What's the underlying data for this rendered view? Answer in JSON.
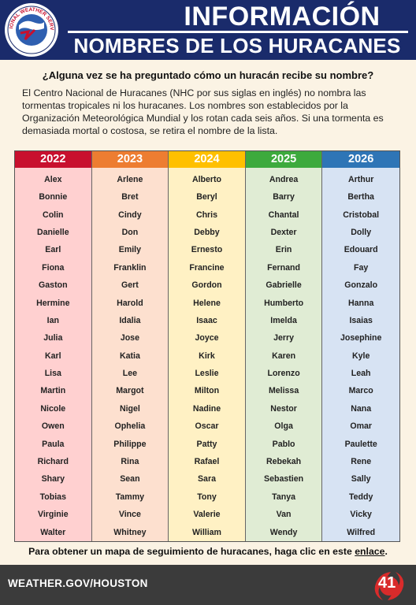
{
  "header": {
    "logo_text": "NATIONAL WEATHER SERVICE",
    "title": "INFORMACIÓN",
    "subtitle": "NOMBRES DE LOS HURACANES"
  },
  "question": "¿Alguna vez se ha preguntado cómo un huracán recibe su nombre?",
  "intro": "El Centro Nacional de Huracanes (NHC por sus siglas en inglés) no nombra las tormentas tropicales ni los huracanes. Los nombres son establecidos por la Organización Meteorológica Mundial y los rotan cada seis años. Si una tormenta es demasiada mortal o costosa, se retira el nombre de la lista.",
  "columns": [
    {
      "year": "2022",
      "header_color": "#c8102e",
      "body_color": "#ffd0d0",
      "names": [
        "Alex",
        "Bonnie",
        "Colin",
        "Danielle",
        "Earl",
        "Fiona",
        "Gaston",
        "Hermine",
        "Ian",
        "Julia",
        "Karl",
        "Lisa",
        "Martin",
        "Nicole",
        "Owen",
        "Paula",
        "Richard",
        "Shary",
        "Tobias",
        "Virginie",
        "Walter"
      ]
    },
    {
      "year": "2023",
      "header_color": "#ed7d31",
      "body_color": "#fde0cf",
      "names": [
        "Arlene",
        "Bret",
        "Cindy",
        "Don",
        "Emily",
        "Franklin",
        "Gert",
        "Harold",
        "Idalia",
        "Jose",
        "Katia",
        "Lee",
        "Margot",
        "Nigel",
        "Ophelia",
        "Philippe",
        "Rina",
        "Sean",
        "Tammy",
        "Vince",
        "Whitney"
      ]
    },
    {
      "year": "2024",
      "header_color": "#ffc000",
      "body_color": "#fff1c4",
      "names": [
        "Alberto",
        "Beryl",
        "Chris",
        "Debby",
        "Ernesto",
        "Francine",
        "Gordon",
        "Helene",
        "Isaac",
        "Joyce",
        "Kirk",
        "Leslie",
        "Milton",
        "Nadine",
        "Oscar",
        "Patty",
        "Rafael",
        "Sara",
        "Tony",
        "Valerie",
        "William"
      ]
    },
    {
      "year": "2025",
      "header_color": "#3daa3d",
      "body_color": "#e0ecd4",
      "names": [
        "Andrea",
        "Barry",
        "Chantal",
        "Dexter",
        "Erin",
        "Fernand",
        "Gabrielle",
        "Humberto",
        "Imelda",
        "Jerry",
        "Karen",
        "Lorenzo",
        "Melissa",
        "Nestor",
        "Olga",
        "Pablo",
        "Rebekah",
        "Sebastien",
        "Tanya",
        "Van",
        "Wendy"
      ]
    },
    {
      "year": "2026",
      "header_color": "#2e75b6",
      "body_color": "#d7e3f3",
      "names": [
        "Arthur",
        "Bertha",
        "Cristobal",
        "Dolly",
        "Edouard",
        "Fay",
        "Gonzalo",
        "Hanna",
        "Isaias",
        "Josephine",
        "Kyle",
        "Leah",
        "Marco",
        "Nana",
        "Omar",
        "Paulette",
        "Rene",
        "Sally",
        "Teddy",
        "Vicky",
        "Wilfred"
      ]
    }
  ],
  "footnote": {
    "text": "Para obtener un mapa de seguimiento de huracanes, haga clic en este ",
    "link": "enlace",
    "end": "."
  },
  "footer": {
    "url": "WEATHER.GOV/HOUSTON",
    "page": "41"
  }
}
